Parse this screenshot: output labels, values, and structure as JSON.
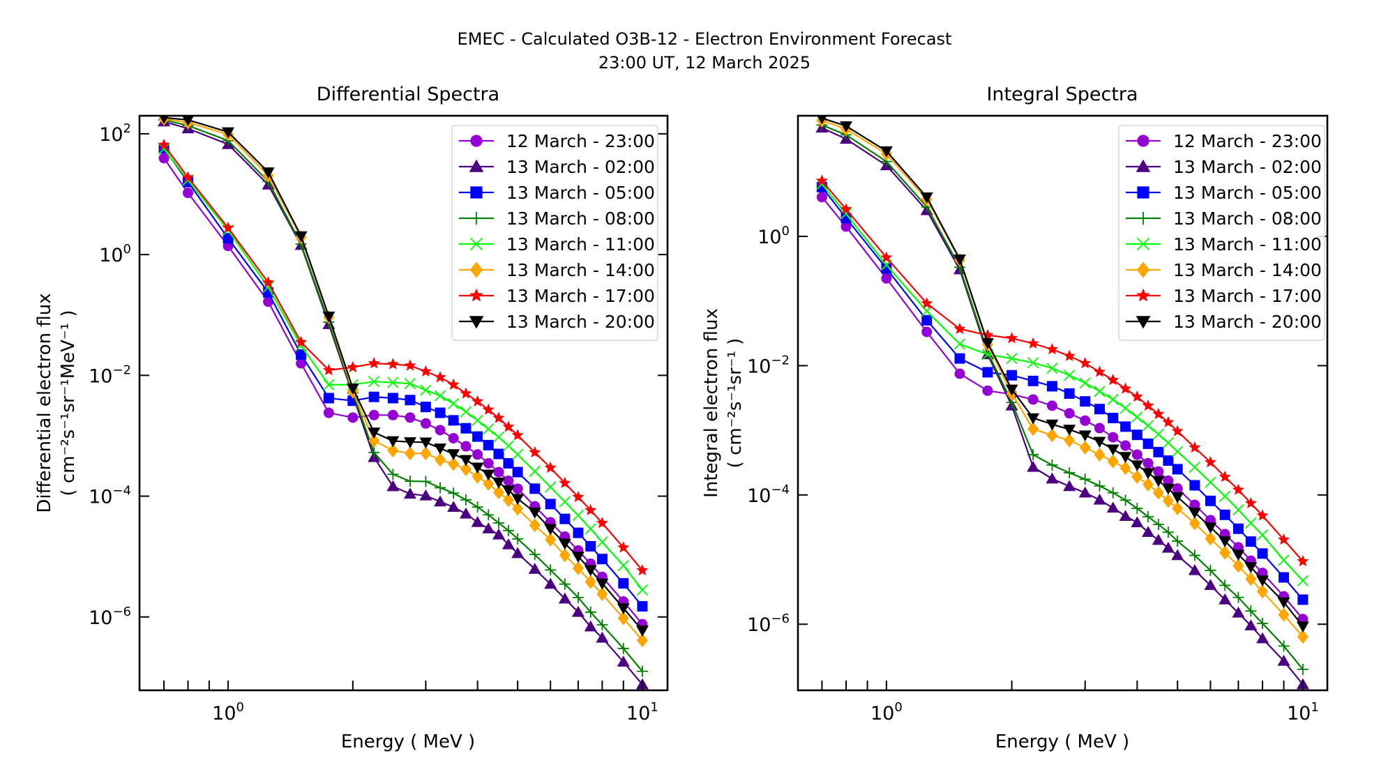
{
  "figure": {
    "suptitle_line1": "EMEC - Calculated O3B-12 - Electron Environment Forecast",
    "suptitle_line2": "23:00 UT, 12 March 2025"
  },
  "chart_data": [
    {
      "type": "line",
      "title": "Differential Spectra",
      "xlabel": "Energy ( MeV )",
      "ylabel_line1": "Differential electron flux",
      "ylabel_line2": "( cm⁻²s⁻¹sr⁻¹MeV⁻¹ )",
      "xscale": "log",
      "yscale": "log",
      "xlim": [
        0.611,
        11.5
      ],
      "ylim": [
        6.1e-08,
        199
      ],
      "xticks_major": [
        1,
        10
      ],
      "xtick_labels": [
        {
          "base": "10",
          "exp": "0"
        },
        {
          "base": "10",
          "exp": "1"
        }
      ],
      "yticks_major": [
        100,
        1,
        0.01,
        0.0001,
        1e-06
      ],
      "ytick_labels": [
        {
          "base": "10",
          "exp": "2"
        },
        {
          "base": "10",
          "exp": "0"
        },
        {
          "base": "10",
          "exp": "−2"
        },
        {
          "base": "10",
          "exp": "−4"
        },
        {
          "base": "10",
          "exp": "−6"
        }
      ],
      "grid": false,
      "legend_position": "upper-right",
      "x": [
        0.7,
        0.8,
        1.0,
        1.25,
        1.5,
        1.75,
        2.0,
        2.25,
        2.5,
        2.75,
        3.0,
        3.25,
        3.5,
        3.75,
        4.0,
        4.25,
        4.5,
        4.75,
        5.0,
        5.5,
        6.0,
        6.5,
        7.0,
        7.5,
        8.0,
        9.0,
        10.0
      ],
      "series": [
        {
          "name": "12 March - 23:00",
          "color": "#9400d3",
          "marker": "circle",
          "values": [
            39.5,
            10.5,
            1.39,
            0.166,
            0.0158,
            0.0024,
            0.002,
            0.0022,
            0.0022,
            0.002,
            0.0016,
            0.00124,
            0.00091,
            0.00067,
            0.00049,
            0.00035,
            0.00025,
            0.00018,
            0.000133,
            6.8e-05,
            3.7e-05,
            2.14e-05,
            1.26e-05,
            7.6e-06,
            4.6e-06,
            1.8e-06,
            7.6e-07
          ]
        },
        {
          "name": "13 March - 02:00",
          "color": "#4b0082",
          "marker": "triangle-up",
          "values": [
            159,
            122,
            67,
            14.3,
            1.43,
            0.07,
            0.0047,
            0.00044,
            0.000145,
            0.000109,
            0.000102,
            8.1e-05,
            6.6e-05,
            5.1e-05,
            3.7e-05,
            2.9e-05,
            2.3e-05,
            1.58e-05,
            1.13e-05,
            6.2e-06,
            3.5e-06,
            2e-06,
            1.2e-06,
            6.9e-07,
            4.5e-07,
            1.8e-07,
            7.6e-08
          ]
        },
        {
          "name": "13 March - 05:00",
          "color": "#0000ff",
          "marker": "square",
          "values": [
            58,
            15.9,
            1.86,
            0.236,
            0.0221,
            0.0042,
            0.0038,
            0.0044,
            0.0042,
            0.0039,
            0.003,
            0.0024,
            0.0018,
            0.00133,
            0.00097,
            0.0007,
            0.0005,
            0.00035,
            0.00025,
            0.000133,
            7.4e-05,
            4.2e-05,
            2.47e-05,
            1.48e-05,
            9.1e-06,
            3.6e-06,
            1.5e-06
          ]
        },
        {
          "name": "13 March - 08:00",
          "color": "#008000",
          "marker": "plus",
          "values": [
            170,
            137,
            77,
            16.3,
            1.49,
            0.076,
            0.0051,
            0.00053,
            0.00023,
            0.000177,
            0.000175,
            0.000138,
            0.000112,
            8.7e-05,
            6.6e-05,
            4.9e-05,
            3.6e-05,
            2.7e-05,
            1.96e-05,
            1.08e-05,
            6e-06,
            3.5e-06,
            2.1e-06,
            1.2e-06,
            7.4e-07,
            3e-07,
            1.26e-07
          ]
        },
        {
          "name": "13 March - 11:00",
          "color": "#00ff00",
          "marker": "x",
          "values": [
            56.6,
            17.1,
            2.54,
            0.29,
            0.031,
            0.007,
            0.007,
            0.0079,
            0.0076,
            0.0073,
            0.0057,
            0.0046,
            0.0034,
            0.0025,
            0.0018,
            0.0013,
            0.00095,
            0.00068,
            0.00049,
            0.000257,
            0.000142,
            8.1e-05,
            4.8e-05,
            2.88e-05,
            1.74e-05,
            7.1e-06,
            2.8e-06
          ]
        },
        {
          "name": "13 March - 14:00",
          "color": "#ffa500",
          "marker": "diamond",
          "values": [
            178,
            154,
            98,
            20.3,
            1.94,
            0.092,
            0.0054,
            0.00083,
            0.00057,
            0.00051,
            0.00051,
            0.0004,
            0.00034,
            0.00028,
            0.00021,
            0.00016,
            0.000116,
            8.6e-05,
            6.2e-05,
            3.3e-05,
            1.9e-05,
            1.05e-05,
            6.4e-06,
            3.8e-06,
            2.4e-06,
            9.5e-07,
            4.1e-07
          ]
        },
        {
          "name": "13 March - 17:00",
          "color": "#ff0000",
          "marker": "star",
          "values": [
            65.5,
            19,
            2.77,
            0.345,
            0.0354,
            0.0122,
            0.0136,
            0.0158,
            0.0153,
            0.0145,
            0.0116,
            0.0093,
            0.007,
            0.005,
            0.0037,
            0.0027,
            0.00197,
            0.0014,
            0.00102,
            0.00053,
            0.000295,
            0.000165,
            9.66e-05,
            5.85e-05,
            3.59e-05,
            1.41e-05,
            5.9e-06
          ]
        },
        {
          "name": "13 March - 20:00",
          "color": "#000000",
          "marker": "triangle-down",
          "values": [
            185,
            170,
            107,
            23.2,
            2.03,
            0.095,
            0.0061,
            0.00114,
            0.00082,
            0.00079,
            0.00078,
            0.00062,
            0.0005,
            0.0004,
            0.0003,
            0.00023,
            0.00017,
            0.000126,
            9.1e-05,
            5.4e-05,
            2.88e-05,
            1.65e-05,
            1e-05,
            6e-06,
            3.6e-06,
            1.4e-06,
            6e-07
          ]
        }
      ]
    },
    {
      "type": "line",
      "title": "Integral Spectra",
      "xlabel": "Energy ( MeV )",
      "ylabel_line1": "Integral electron flux",
      "ylabel_line2": "( cm⁻²s⁻¹sr⁻¹ )",
      "xscale": "log",
      "yscale": "log",
      "xlim": [
        0.613,
        11.45
      ],
      "ylim": [
        9.5e-08,
        73.5
      ],
      "xticks_major": [
        1,
        10
      ],
      "xtick_labels": [
        {
          "base": "10",
          "exp": "0"
        },
        {
          "base": "10",
          "exp": "1"
        }
      ],
      "yticks_major": [
        1,
        0.01,
        0.0001,
        1e-06
      ],
      "ytick_labels": [
        {
          "base": "10",
          "exp": "0"
        },
        {
          "base": "10",
          "exp": "−2"
        },
        {
          "base": "10",
          "exp": "−4"
        },
        {
          "base": "10",
          "exp": "−6"
        }
      ],
      "grid": false,
      "legend_position": "upper-right",
      "x": [
        0.7,
        0.8,
        1.0,
        1.25,
        1.5,
        1.75,
        2.0,
        2.25,
        2.5,
        2.75,
        3.0,
        3.25,
        3.5,
        3.75,
        4.0,
        4.25,
        4.5,
        4.75,
        5.0,
        5.5,
        6.0,
        6.5,
        7.0,
        7.5,
        8.0,
        9.0,
        10.0
      ],
      "series": [
        {
          "name": "12 March - 23:00",
          "color": "#9400d3",
          "marker": "circle",
          "values": [
            4.05,
            1.42,
            0.224,
            0.0333,
            0.0075,
            0.0041,
            0.0036,
            0.003,
            0.0024,
            0.00183,
            0.00141,
            0.00108,
            0.00078,
            0.00058,
            0.00042,
            0.00031,
            0.00023,
            0.000166,
            0.000126,
            7.03e-05,
            4.07e-05,
            2.48e-05,
            1.55e-05,
            9.6e-06,
            6.2e-06,
            2.7e-06,
            1.2e-06
          ]
        },
        {
          "name": "13 March - 02:00",
          "color": "#4b0082",
          "marker": "triangle-up",
          "values": [
            47.8,
            32.1,
            12.5,
            2.52,
            0.306,
            0.0149,
            0.0024,
            0.00027,
            0.000178,
            0.000136,
            0.000108,
            8.4e-05,
            6.3e-05,
            4.7e-05,
            3.75e-05,
            2.65e-05,
            2e-05,
            1.51e-05,
            1.16e-05,
            6.8e-06,
            4e-06,
            2.4e-06,
            1.5e-06,
            9.5e-07,
            6e-07,
            2.7e-07,
            1.17e-07
          ]
        },
        {
          "name": "13 March - 05:00",
          "color": "#0000ff",
          "marker": "square",
          "values": [
            5.79,
            1.92,
            0.319,
            0.0504,
            0.0129,
            0.0079,
            0.0071,
            0.0058,
            0.0048,
            0.0037,
            0.0028,
            0.00213,
            0.00155,
            0.00114,
            0.00085,
            0.00062,
            0.00046,
            0.00034,
            0.00025,
            0.000141,
            8.09e-05,
            4.93e-05,
            3e-05,
            1.9e-05,
            1.24e-05,
            5.3e-06,
            2.4e-06
          ]
        },
        {
          "name": "13 March - 08:00",
          "color": "#008000",
          "marker": "plus",
          "values": [
            52.8,
            37.3,
            14.4,
            2.86,
            0.333,
            0.0162,
            0.0027,
            0.00042,
            0.00029,
            0.00022,
            0.000175,
            0.000138,
            0.000108,
            8.3e-05,
            6.2e-05,
            4.6e-05,
            3.5e-05,
            2.65e-05,
            1.93e-05,
            1.16e-05,
            6.8e-06,
            4e-06,
            2.6e-06,
            1.6e-06,
            1.03e-06,
            4.6e-07,
            2e-07
          ]
        },
        {
          "name": "13 March - 11:00",
          "color": "#00ff00",
          "marker": "x",
          "values": [
            6.44,
            2.23,
            0.361,
            0.07,
            0.0216,
            0.0149,
            0.0129,
            0.0111,
            0.0091,
            0.0071,
            0.0054,
            0.004,
            0.003,
            0.0022,
            0.0016,
            0.00118,
            0.00087,
            0.00064,
            0.00047,
            0.000269,
            0.000157,
            9.55e-05,
            5.89e-05,
            3.68e-05,
            2.4e-05,
            9.8e-06,
            4.7e-06
          ]
        },
        {
          "name": "13 March - 14:00",
          "color": "#ffa500",
          "marker": "diamond",
          "values": [
            62.2,
            45.9,
            18.9,
            3.73,
            0.433,
            0.0213,
            0.0037,
            0.00105,
            0.00084,
            0.0007,
            0.00054,
            0.00042,
            0.00033,
            0.00026,
            0.00019,
            0.000145,
            0.000108,
            8.1e-05,
            6.2e-05,
            3.63e-05,
            2.11e-05,
            1.28e-05,
            8e-06,
            5e-06,
            3.2e-06,
            1.4e-06,
            6.4e-07
          ]
        },
        {
          "name": "13 March - 17:00",
          "color": "#ff0000",
          "marker": "star",
          "values": [
            7.24,
            2.63,
            0.471,
            0.092,
            0.037,
            0.0296,
            0.0266,
            0.022,
            0.0179,
            0.0141,
            0.0109,
            0.008,
            0.006,
            0.0044,
            0.0033,
            0.0024,
            0.00178,
            0.00133,
            0.00097,
            0.00054,
            0.00032,
            0.00019,
            0.00012,
            7.44e-05,
            4.8e-05,
            2.03e-05,
            9.4e-06
          ]
        },
        {
          "name": "13 March - 20:00",
          "color": "#000000",
          "marker": "triangle-down",
          "values": [
            67.7,
            51,
            20.9,
            4.05,
            0.444,
            0.0225,
            0.0043,
            0.00155,
            0.00124,
            0.00103,
            0.00084,
            0.00067,
            0.00051,
            0.00039,
            0.00029,
            0.00022,
            0.000166,
            0.000126,
            9.3e-05,
            5.37e-05,
            3.17e-05,
            1.93e-05,
            1.2e-05,
            7.7e-06,
            4.8e-06,
            2.2e-06,
            9.3e-07
          ]
        }
      ]
    }
  ]
}
